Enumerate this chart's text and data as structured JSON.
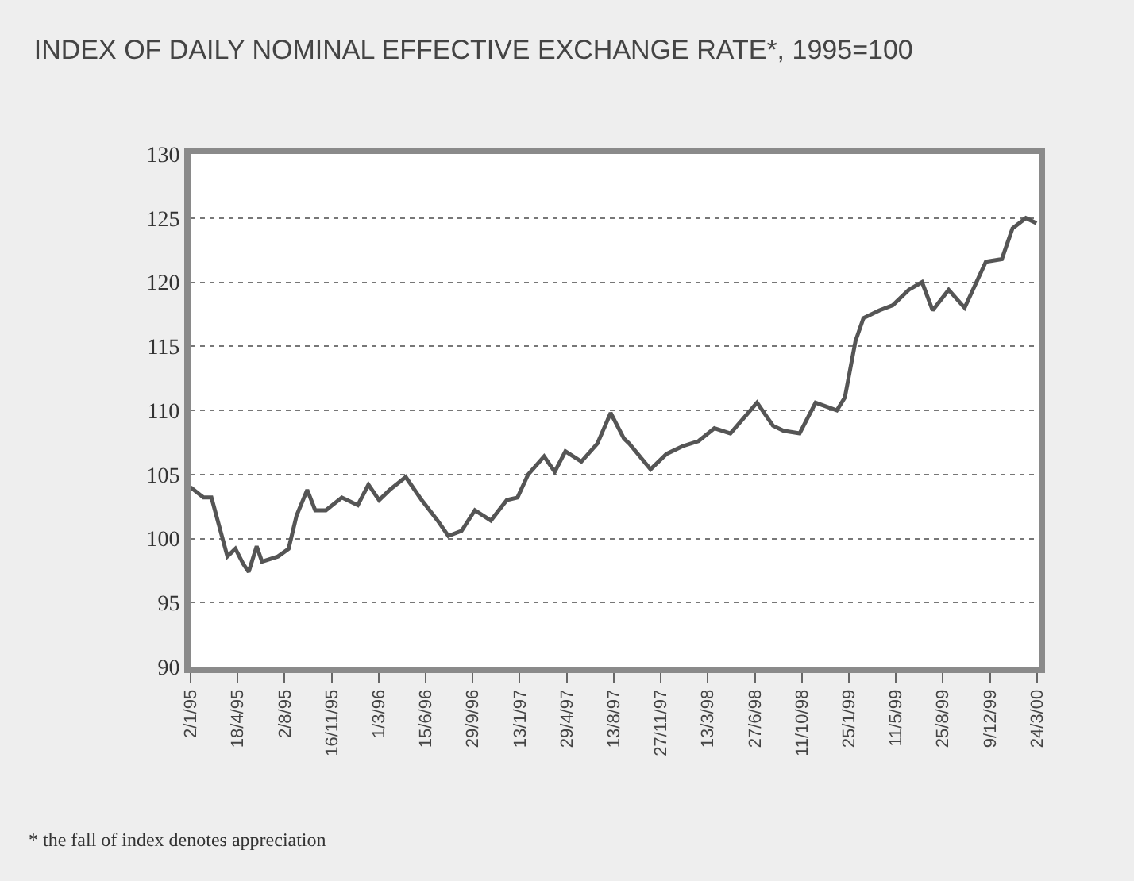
{
  "chart_data": {
    "type": "line",
    "title": "INDEX OF DAILY NOMINAL EFFECTIVE EXCHANGE RATE*, 1995=100",
    "x": [
      "1995-01-02",
      "1995-01-31",
      "1995-02-18",
      "1995-03-26",
      "1995-04-13",
      "1995-05-01",
      "1995-05-13",
      "1995-05-31",
      "1995-06-12",
      "1995-07-18",
      "1995-08-11",
      "1995-08-29",
      "1995-09-22",
      "1995-10-10",
      "1995-11-03",
      "1995-12-09",
      "1996-01-14",
      "1996-02-07",
      "1996-03-02",
      "1996-03-26",
      "1996-05-01",
      "1996-06-06",
      "1996-07-12",
      "1996-08-05",
      "1996-09-04",
      "1996-10-04",
      "1996-11-09",
      "1996-12-15",
      "1997-01-08",
      "1997-02-01",
      "1997-03-09",
      "1997-04-02",
      "1997-04-26",
      "1997-06-01",
      "1997-07-07",
      "1997-08-06",
      "1997-09-05",
      "1997-09-17",
      "1997-11-04",
      "1997-12-10",
      "1998-01-15",
      "1998-02-20",
      "1998-03-28",
      "1998-05-03",
      "1998-07-02",
      "1998-08-07",
      "1998-08-31",
      "1998-10-06",
      "1998-11-11",
      "1998-12-29",
      "1999-01-16",
      "1999-02-09",
      "1999-02-27",
      "1999-04-04",
      "1999-05-04",
      "1999-06-09",
      "1999-07-09",
      "1999-08-02",
      "1999-09-07",
      "1999-10-13",
      "1999-11-30",
      "2000-01-05",
      "2000-01-29",
      "2000-02-28",
      "2000-03-23"
    ],
    "series": [
      {
        "color": "#555555",
        "values": [
          104.0,
          103.2,
          103.2,
          98.6,
          99.2,
          98.0,
          97.4,
          99.4,
          98.2,
          98.6,
          99.2,
          101.8,
          103.8,
          102.2,
          102.2,
          103.2,
          102.6,
          104.2,
          103.0,
          103.8,
          104.8,
          103.0,
          101.4,
          100.2,
          100.6,
          102.2,
          101.4,
          103.0,
          103.2,
          105.0,
          106.4,
          105.2,
          106.8,
          106.0,
          107.4,
          109.8,
          107.8,
          107.4,
          105.4,
          106.6,
          107.2,
          107.6,
          108.6,
          108.2,
          110.6,
          108.8,
          108.4,
          108.2,
          110.6,
          110.0,
          111.0,
          115.4,
          117.2,
          117.8,
          118.2,
          119.4,
          120.0,
          117.8,
          119.4,
          118.0,
          121.6,
          121.8,
          124.2,
          125.0,
          124.6
        ]
      }
    ],
    "xlim": [
      "1995-01-02",
      "2000-03-28"
    ],
    "xticks": [
      {
        "value": "1995-01-02",
        "label": "2/1/95"
      },
      {
        "value": "1995-04-18",
        "label": "18/4/95"
      },
      {
        "value": "1995-08-02",
        "label": "2/8/95"
      },
      {
        "value": "1995-11-16",
        "label": "16/11/95"
      },
      {
        "value": "1996-03-01",
        "label": "1/3/96"
      },
      {
        "value": "1996-06-15",
        "label": "15/6/96"
      },
      {
        "value": "1996-09-29",
        "label": "29/9/96"
      },
      {
        "value": "1997-01-13",
        "label": "13/1/97"
      },
      {
        "value": "1997-04-29",
        "label": "29/4/97"
      },
      {
        "value": "1997-08-13",
        "label": "13/8/97"
      },
      {
        "value": "1997-11-27",
        "label": "27/11/97"
      },
      {
        "value": "1998-03-13",
        "label": "13/3/98"
      },
      {
        "value": "1998-06-27",
        "label": "27/6/98"
      },
      {
        "value": "1998-10-11",
        "label": "11/10/98"
      },
      {
        "value": "1999-01-25",
        "label": "25/1/99"
      },
      {
        "value": "1999-05-11",
        "label": "11/5/99"
      },
      {
        "value": "1999-08-25",
        "label": "25/8/99"
      },
      {
        "value": "1999-12-09",
        "label": "9/12/99"
      },
      {
        "value": "2000-03-24",
        "label": "24/3/00"
      }
    ],
    "ylim": [
      90,
      130
    ],
    "yticks": [
      90,
      95,
      100,
      105,
      110,
      115,
      120,
      125,
      130
    ],
    "grid": "y",
    "line_style": "solid",
    "legend": false,
    "annotations": [
      "* the fall of index denotes appreciation"
    ]
  }
}
